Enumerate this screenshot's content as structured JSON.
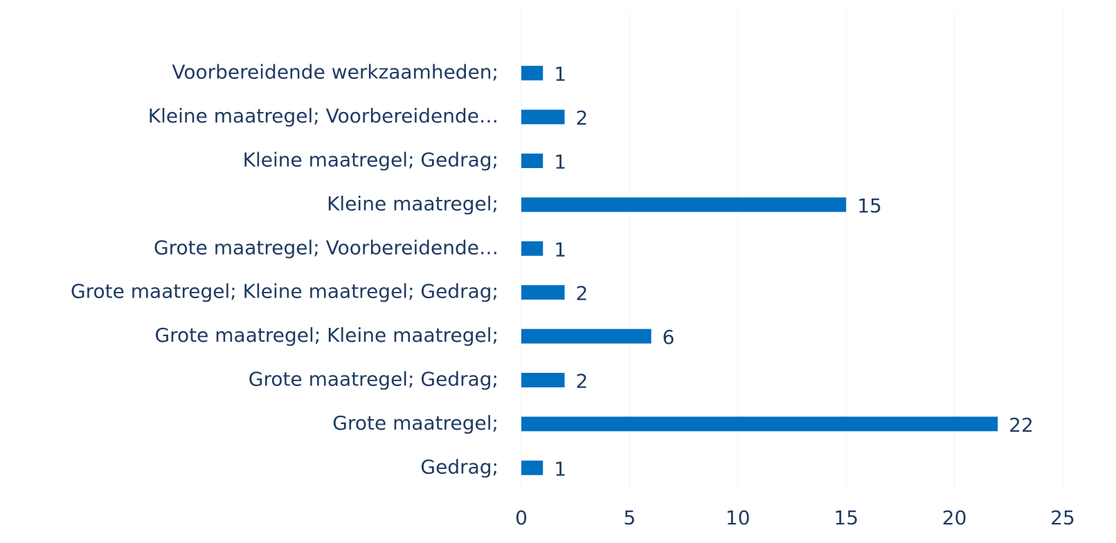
{
  "chart_data": {
    "type": "bar",
    "orientation": "horizontal",
    "categories": [
      "Voorbereidende werkzaamheden;",
      "Kleine maatregel; Voorbereidende…",
      "Kleine maatregel; Gedrag;",
      "Kleine maatregel;",
      "Grote maatregel; Voorbereidende…",
      "Grote maatregel; Kleine maatregel; Gedrag;",
      "Grote maatregel; Kleine maatregel;",
      "Grote maatregel; Gedrag;",
      "Grote maatregel;",
      "Gedrag;"
    ],
    "values": [
      1,
      2,
      1,
      15,
      1,
      2,
      6,
      2,
      22,
      1
    ],
    "color": "#0070c0",
    "xlim": [
      0,
      25
    ],
    "xticks": [
      0,
      5,
      10,
      15,
      20,
      25
    ],
    "grid": true
  }
}
